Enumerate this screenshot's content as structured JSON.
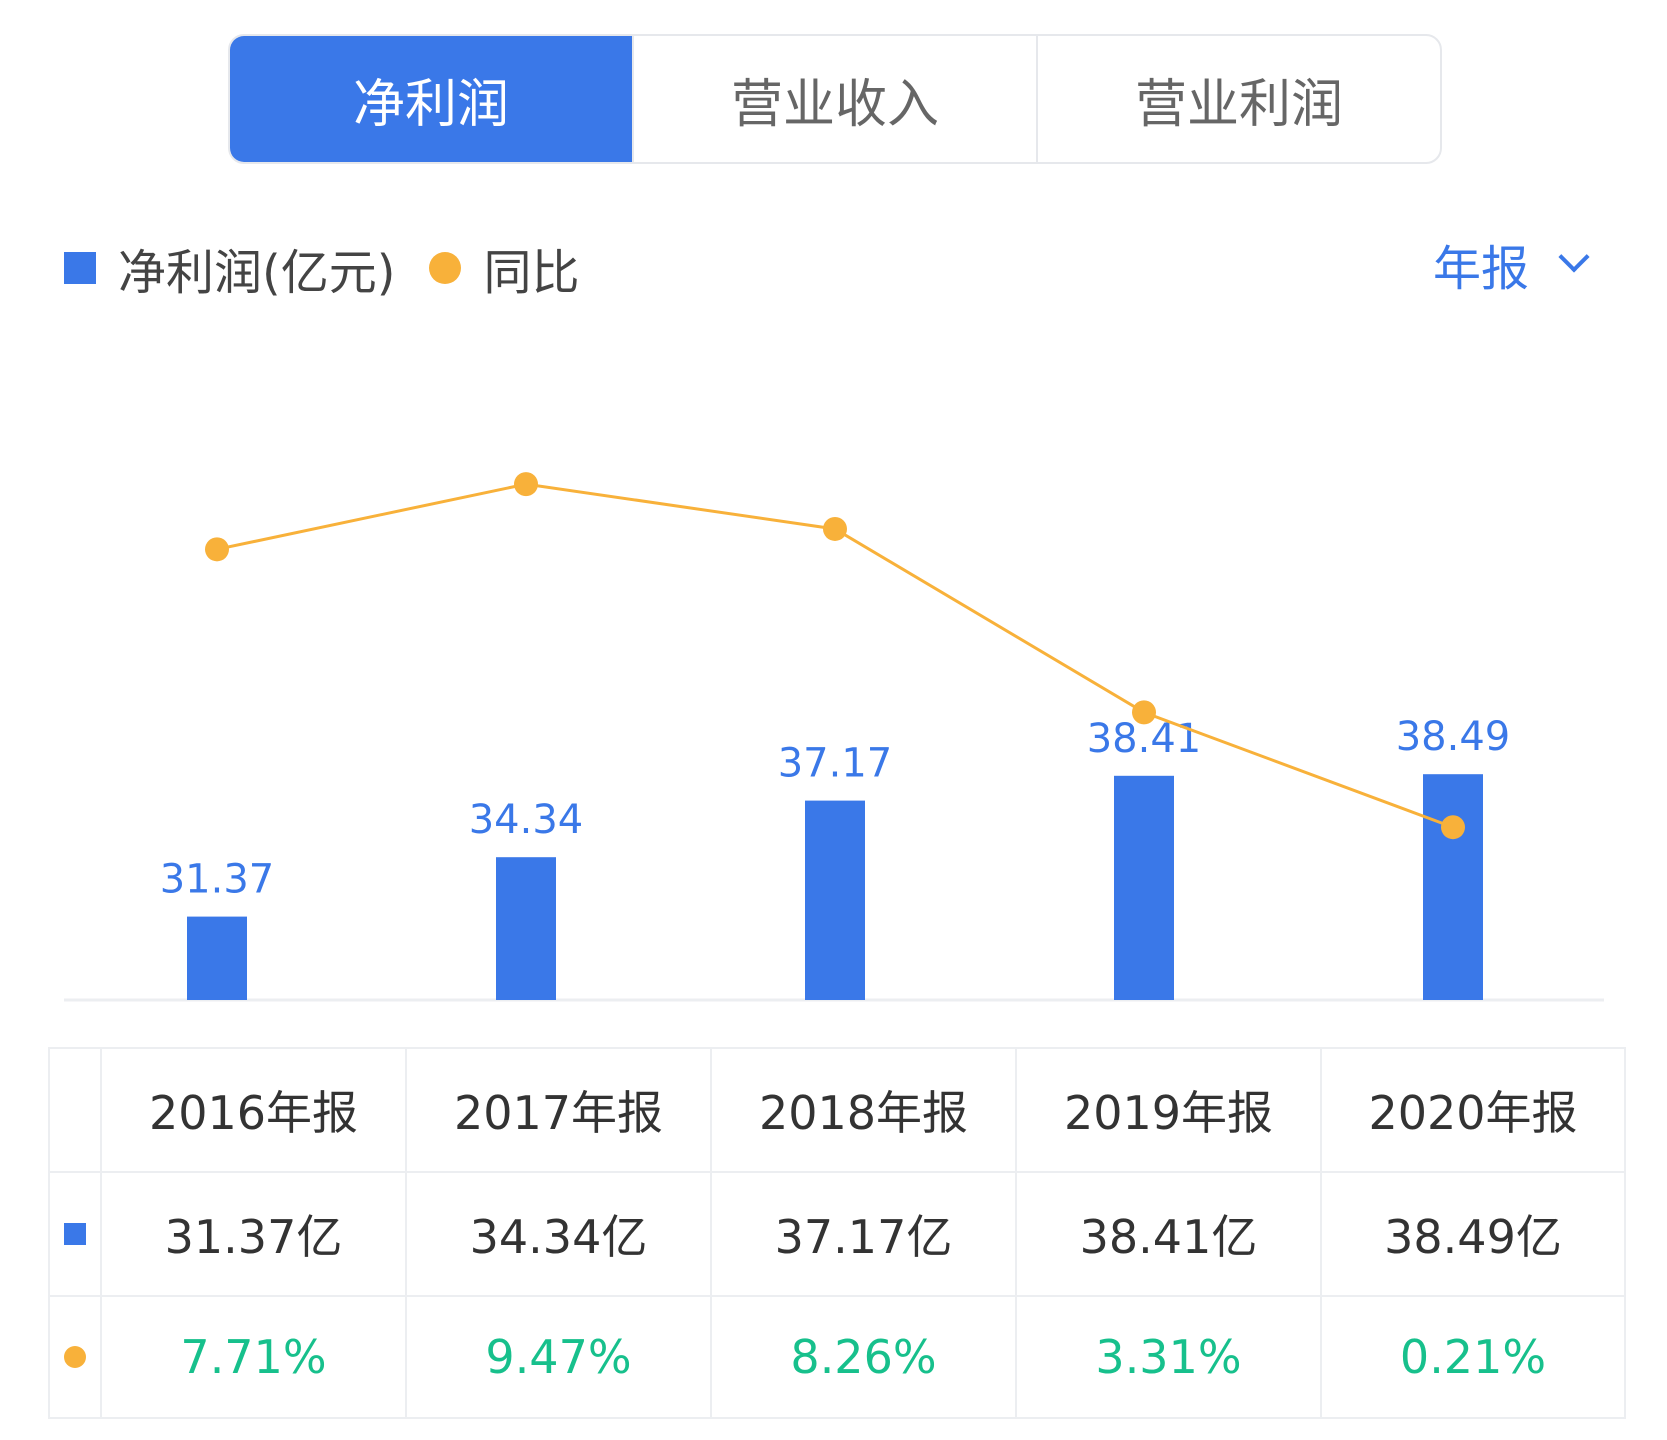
{
  "tabs": [
    {
      "label": "净利润",
      "active": true
    },
    {
      "label": "营业收入",
      "active": false
    },
    {
      "label": "营业利润",
      "active": false
    }
  ],
  "legend": {
    "bar_label": "净利润(亿元)",
    "line_label": "同比"
  },
  "period_selector": {
    "label": "年报"
  },
  "colors": {
    "accent": "#3a78e8",
    "line": "#f8b13a",
    "positive": "#17c08c"
  },
  "table": {
    "headers": [
      "2016年报",
      "2017年报",
      "2018年报",
      "2019年报",
      "2020年报"
    ],
    "values": [
      "31.37亿",
      "34.34亿",
      "37.17亿",
      "38.41亿",
      "38.49亿"
    ],
    "yoy": [
      "7.71%",
      "9.47%",
      "8.26%",
      "3.31%",
      "0.21%"
    ]
  },
  "chart_data": {
    "type": "bar",
    "categories": [
      "2016年报",
      "2017年报",
      "2018年报",
      "2019年报",
      "2020年报"
    ],
    "series": [
      {
        "name": "净利润(亿元)",
        "type": "bar",
        "values": [
          31.37,
          34.34,
          37.17,
          38.41,
          38.49
        ],
        "labels": [
          "31.37",
          "34.34",
          "37.17",
          "38.41",
          "38.49"
        ]
      },
      {
        "name": "同比",
        "type": "line",
        "values": [
          7.71,
          9.47,
          8.26,
          3.31,
          0.21
        ]
      }
    ],
    "title": "",
    "xlabel": "",
    "ylabel": "",
    "grid": false,
    "legend_position": "top-left"
  }
}
